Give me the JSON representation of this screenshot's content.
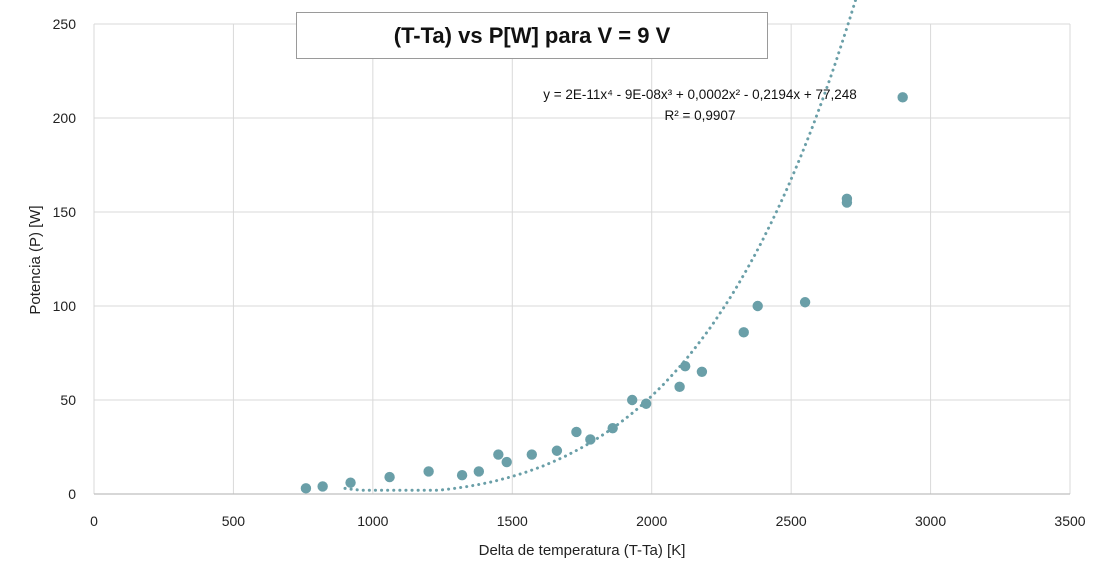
{
  "chart_data": {
    "type": "scatter",
    "title": "(T-Ta) vs P[W] para V = 9 V",
    "xlabel": "Delta de temperatura (T-Ta) [K]",
    "ylabel": "Potencia (P) [W]",
    "xlim": [
      0,
      3500
    ],
    "ylim": [
      0,
      250
    ],
    "xticks": [
      0,
      500,
      1000,
      1500,
      2000,
      2500,
      3000,
      3500
    ],
    "yticks": [
      0,
      50,
      100,
      150,
      200,
      250
    ],
    "grid": true,
    "point_color": "#6a9fa8",
    "trendline": {
      "type": "polynomial",
      "order": 4,
      "style": "dotted",
      "color": "#6a9fa8",
      "equation": "y = 2E-11x⁴ - 9E-08x³ + 0,0002x² - 0,2194x + 77,248",
      "r_squared": "R² = 0,9907",
      "x_range": [
        900,
        2900
      ]
    },
    "series": [
      {
        "points": [
          [
            760,
            3
          ],
          [
            820,
            4
          ],
          [
            920,
            6
          ],
          [
            1060,
            9
          ],
          [
            1200,
            12
          ],
          [
            1320,
            10
          ],
          [
            1380,
            12
          ],
          [
            1450,
            21
          ],
          [
            1480,
            17
          ],
          [
            1570,
            21
          ],
          [
            1660,
            23
          ],
          [
            1730,
            33
          ],
          [
            1780,
            29
          ],
          [
            1860,
            35
          ],
          [
            1930,
            50
          ],
          [
            1980,
            48
          ],
          [
            2100,
            57
          ],
          [
            2120,
            68
          ],
          [
            2180,
            65
          ],
          [
            2330,
            86
          ],
          [
            2380,
            100
          ],
          [
            2550,
            102
          ],
          [
            2700,
            157
          ],
          [
            2700,
            155
          ],
          [
            2900,
            211
          ]
        ]
      }
    ]
  }
}
